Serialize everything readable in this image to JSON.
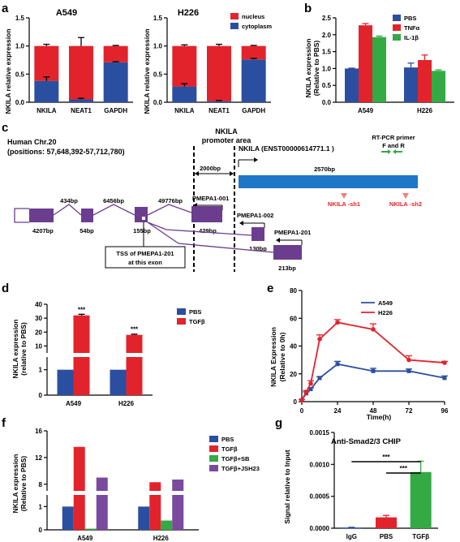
{
  "panels": {
    "a": {
      "letter": "a"
    },
    "b": {
      "letter": "b"
    },
    "c": {
      "letter": "c"
    },
    "d": {
      "letter": "d"
    },
    "e": {
      "letter": "e"
    },
    "f": {
      "letter": "f"
    },
    "g": {
      "letter": "g"
    }
  },
  "colors": {
    "blue": "#2b4fa0",
    "red": "#e3232b",
    "green": "#33aa44",
    "purple": "#7a4a9e",
    "track": "#1e77c7",
    "purple_gene": "#6b3d8e"
  },
  "diagram": {
    "chr_line1": "Human Chr.20",
    "chr_line2": "(positions: 57,648,392-57,712,780)",
    "promoter_title1": "NKILA",
    "promoter_title2": "promoter area",
    "nkila_label": "NKILA (ENST00000614771.1 )",
    "dist_2000": "2000bp",
    "dist_2570": "2570bp",
    "primer_line1": "RT-PCR primer",
    "primer_line2": "F and R",
    "sh1": "NKILA -sh1",
    "sh2": "NKILA -sh2",
    "exon_4207": "4207bp",
    "intron_434": "434bp",
    "intron_6456": "6456bp",
    "exon_54": "54bp",
    "exon_155": "155bp",
    "intron_49776": "49776bp",
    "pmepa1_001": "PMEPA1-001",
    "exon_429": "429bp",
    "pmepa1_002": "PMEPA1-002",
    "exon_130": "130bp",
    "pmepa1_201": "PMEPA1-201",
    "exon_213": "213bp",
    "tss_line1": "TSS of PMEPA1-201",
    "tss_line2": "at this exon"
  },
  "chart_data": [
    {
      "id": "a-left",
      "type": "bar",
      "stacked": true,
      "title": "A549",
      "ylabel": "NKILA relative expression",
      "categories": [
        "NKILA",
        "NEAT1",
        "GAPDH"
      ],
      "series": [
        {
          "name": "cytoplasm",
          "values": [
            0.38,
            0.05,
            0.71
          ],
          "err": [
            0.07,
            0.02,
            0.01
          ]
        },
        {
          "name": "nucleus",
          "values": [
            0.62,
            0.95,
            0.29
          ],
          "err": [
            0.03,
            0.15,
            0.01
          ]
        }
      ],
      "ylim": [
        0,
        1.5
      ],
      "yticks": [
        "0.0",
        "0.5",
        "1.0",
        "1.5"
      ]
    },
    {
      "id": "a-right",
      "type": "bar",
      "stacked": true,
      "title": "H226",
      "ylabel": "NKILA relative expression",
      "categories": [
        "NKILA",
        "NEAT1",
        "GAPDH"
      ],
      "series": [
        {
          "name": "cytoplasm",
          "values": [
            0.28,
            0.02,
            0.76
          ],
          "err": [
            0.05,
            0.01,
            0.02
          ]
        },
        {
          "name": "nucleus",
          "values": [
            0.72,
            0.98,
            0.24
          ],
          "err": [
            0.02,
            0.03,
            0.01
          ]
        }
      ],
      "ylim": [
        0,
        1.5
      ],
      "yticks": [
        "0.0",
        "0.5",
        "1.0",
        "1.5"
      ],
      "legend": [
        "nucleus",
        "cytoplasm"
      ]
    },
    {
      "id": "b",
      "type": "bar",
      "ylabel": "NKILA expression",
      "ylabel2": "(Relative to PBS)",
      "categories": [
        "A549",
        "H226"
      ],
      "series": [
        {
          "name": "PBS",
          "values": [
            1.0,
            1.03
          ],
          "err": [
            0.01,
            0.13
          ]
        },
        {
          "name": "TNFα",
          "values": [
            2.28,
            1.25
          ],
          "err": [
            0.05,
            0.15
          ]
        },
        {
          "name": "IL-1β",
          "values": [
            1.93,
            0.93
          ],
          "err": [
            0.03,
            0.03
          ]
        }
      ],
      "ylim": [
        0,
        2.5
      ],
      "yticks": [
        "0.0",
        "0.5",
        "1.0",
        "1.5",
        "2.0",
        "2.5"
      ]
    },
    {
      "id": "d",
      "type": "bar",
      "broken_axis": true,
      "ylabel": "NKILA expression",
      "ylabel2": "(relative to PBS)",
      "categories": [
        "A549",
        "H226"
      ],
      "series": [
        {
          "name": "PBS",
          "values": [
            1.0,
            1.0
          ]
        },
        {
          "name": "TGFβ",
          "values": [
            32,
            18
          ],
          "err": [
            0.8,
            0.5
          ]
        }
      ],
      "yticks_low": [
        "0",
        "1"
      ],
      "yticks_high": [
        "10",
        "20",
        "30",
        "40"
      ],
      "annotations": [
        "***",
        "***"
      ]
    },
    {
      "id": "e",
      "type": "line",
      "ylabel": "NKILA Expression",
      "ylabel2": "(Relative to 0h)",
      "xlabel": "Time(h)",
      "x": [
        0,
        3,
        6,
        12,
        24,
        48,
        72,
        96
      ],
      "series": [
        {
          "name": "A549",
          "values": [
            1,
            6,
            9,
            17,
            27,
            22,
            22,
            17
          ],
          "err": [
            0.5,
            1,
            1,
            1,
            2,
            2,
            1.5,
            1.5
          ]
        },
        {
          "name": "H226",
          "values": [
            1,
            7,
            13,
            45,
            57,
            52,
            30,
            28
          ],
          "err": [
            0.5,
            1,
            2,
            3,
            2,
            4,
            3,
            1
          ]
        }
      ],
      "xticks": [
        "0",
        "24",
        "48",
        "72",
        "96"
      ],
      "yticks": [
        "0",
        "20",
        "40",
        "60",
        "80"
      ],
      "ylim": [
        0,
        80
      ],
      "xlim": [
        0,
        96
      ]
    },
    {
      "id": "f",
      "type": "bar",
      "broken_axis": true,
      "ylabel": "NKILA expression",
      "ylabel2": "(Relative to PBS)",
      "categories": [
        "A549",
        "H226"
      ],
      "series": [
        {
          "name": "PBS",
          "values": [
            1.0,
            1.0
          ]
        },
        {
          "name": "TGFβ",
          "values": [
            13.6,
            8.3
          ]
        },
        {
          "name": "TGFβ+SB",
          "values": [
            0.05,
            0.4
          ]
        },
        {
          "name": "TGFβ+JSH23",
          "values": [
            9.0,
            8.7
          ]
        }
      ],
      "yticks_low": [
        "0",
        "1"
      ],
      "yticks_high": [
        "8",
        "12",
        "16"
      ]
    },
    {
      "id": "g",
      "type": "bar",
      "title": "Anti-Smad2/3 CHIP",
      "ylabel": "Signal relative to Input",
      "categories": [
        "IgG",
        "PBS",
        "TGFβ"
      ],
      "values": [
        1e-05,
        0.00017,
        0.00088
      ],
      "err": [
        5e-06,
        3e-05,
        0.00017
      ],
      "ylim": [
        0,
        0.0015
      ],
      "yticks": [
        "0.0000",
        "0.0005",
        "0.0010",
        "0.0015"
      ],
      "annotations": [
        "***",
        "***"
      ]
    }
  ]
}
